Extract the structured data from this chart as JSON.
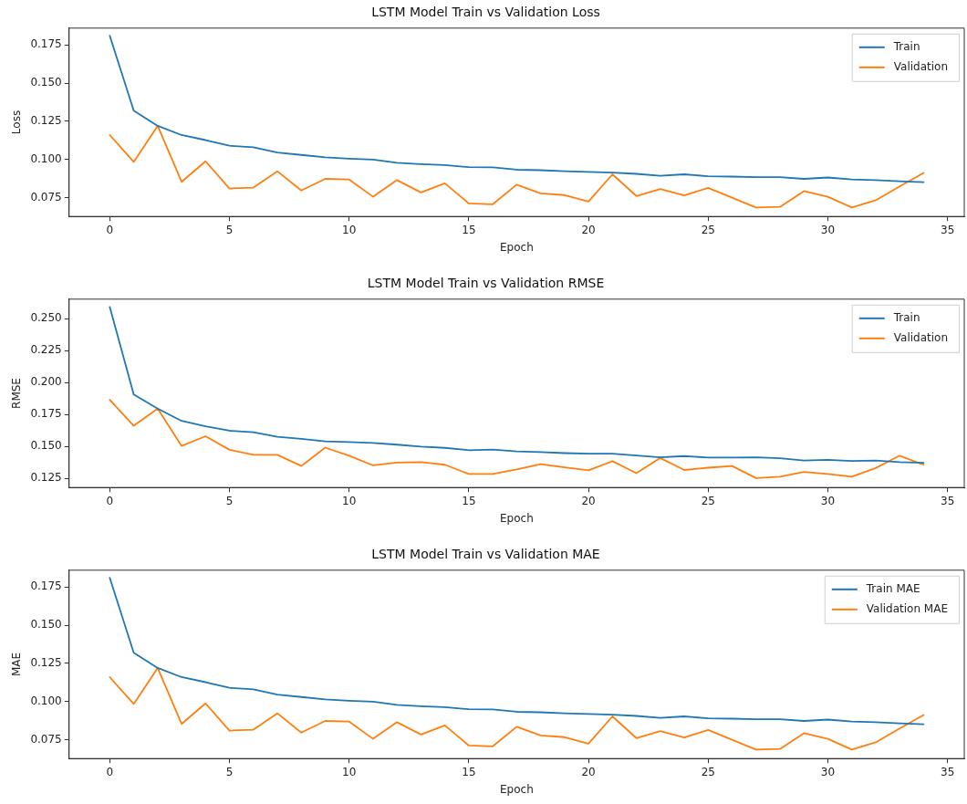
{
  "chart_data": [
    {
      "type": "line",
      "title": "LSTM Model Train vs Validation Loss",
      "xlabel": "Epoch",
      "ylabel": "Loss",
      "legend": "top right",
      "grid": false,
      "x": [
        0,
        1,
        2,
        3,
        4,
        5,
        6,
        7,
        8,
        9,
        10,
        11,
        12,
        13,
        14,
        15,
        16,
        17,
        18,
        19,
        20,
        21,
        22,
        23,
        24,
        25,
        26,
        27,
        28,
        29,
        30,
        31,
        32,
        33,
        34
      ],
      "series": [
        {
          "name": "Train",
          "color": "#1f77b4",
          "values": [
            0.181,
            0.132,
            0.122,
            0.116,
            0.1127,
            0.109,
            0.108,
            0.1046,
            0.103,
            0.1014,
            0.1005,
            0.0999,
            0.0978,
            0.097,
            0.0963,
            0.095,
            0.0948,
            0.0933,
            0.093,
            0.0923,
            0.0919,
            0.0914,
            0.0906,
            0.0893,
            0.0903,
            0.089,
            0.0888,
            0.0884,
            0.0884,
            0.0873,
            0.0882,
            0.0869,
            0.0865,
            0.0858,
            0.0852
          ]
        },
        {
          "name": "Validation",
          "color": "#ff7f0e",
          "values": [
            0.116,
            0.0984,
            0.122,
            0.0854,
            0.0988,
            0.081,
            0.0816,
            0.0923,
            0.0797,
            0.0873,
            0.0869,
            0.0756,
            0.0865,
            0.0784,
            0.0844,
            0.0712,
            0.0707,
            0.0835,
            0.0778,
            0.0767,
            0.0724,
            0.0903,
            0.0761,
            0.0807,
            0.0765,
            0.0814,
            0.075,
            0.0686,
            0.069,
            0.0793,
            0.0756,
            0.0686,
            0.0733,
            0.0824,
            0.0912
          ]
        }
      ],
      "xlim": [
        -1.7,
        35.7
      ],
      "xticks": [
        0,
        5,
        10,
        15,
        20,
        25,
        30,
        35
      ],
      "ylim": [
        0.0627,
        0.186
      ],
      "yticks": [
        {
          "value": 0.075,
          "label": "0.075"
        },
        {
          "value": 0.1,
          "label": "0.100"
        },
        {
          "value": 0.125,
          "label": "0.125"
        },
        {
          "value": 0.15,
          "label": "0.150"
        },
        {
          "value": 0.175,
          "label": "0.175"
        }
      ]
    },
    {
      "type": "line",
      "title": "LSTM Model Train vs Validation RMSE",
      "xlabel": "Epoch",
      "ylabel": "RMSE",
      "legend": "top right",
      "grid": false,
      "x": [
        0,
        1,
        2,
        3,
        4,
        5,
        6,
        7,
        8,
        9,
        10,
        11,
        12,
        13,
        14,
        15,
        16,
        17,
        18,
        19,
        20,
        21,
        22,
        23,
        24,
        25,
        26,
        27,
        28,
        29,
        30,
        31,
        32,
        33,
        34
      ],
      "series": [
        {
          "name": "Train",
          "color": "#1f77b4",
          "values": [
            0.259,
            0.1906,
            0.1796,
            0.17,
            0.1657,
            0.1623,
            0.1611,
            0.1575,
            0.156,
            0.154,
            0.1535,
            0.1527,
            0.1514,
            0.1499,
            0.1489,
            0.1471,
            0.1476,
            0.1461,
            0.1456,
            0.1448,
            0.1443,
            0.1443,
            0.143,
            0.1415,
            0.1425,
            0.1413,
            0.1413,
            0.1415,
            0.1408,
            0.139,
            0.1395,
            0.1387,
            0.139,
            0.1377,
            0.1372
          ]
        },
        {
          "name": "Validation",
          "color": "#ff7f0e",
          "values": [
            0.1865,
            0.1662,
            0.1796,
            0.1504,
            0.158,
            0.1474,
            0.1435,
            0.1435,
            0.1347,
            0.1491,
            0.1428,
            0.1352,
            0.1374,
            0.1377,
            0.1357,
            0.1285,
            0.1285,
            0.1321,
            0.1362,
            0.1336,
            0.1313,
            0.1385,
            0.1291,
            0.141,
            0.1316,
            0.1334,
            0.1347,
            0.1253,
            0.1263,
            0.1301,
            0.1285,
            0.1263,
            0.1331,
            0.1428,
            0.1357
          ]
        }
      ],
      "xlim": [
        -1.7,
        35.7
      ],
      "xticks": [
        0,
        5,
        10,
        15,
        20,
        25,
        30,
        35
      ],
      "ylim": [
        0.1179,
        0.2652
      ],
      "yticks": [
        {
          "value": 0.125,
          "label": "0.125"
        },
        {
          "value": 0.15,
          "label": "0.150"
        },
        {
          "value": 0.175,
          "label": "0.175"
        },
        {
          "value": 0.2,
          "label": "0.200"
        },
        {
          "value": 0.225,
          "label": "0.225"
        },
        {
          "value": 0.25,
          "label": "0.250"
        }
      ]
    },
    {
      "type": "line",
      "title": "LSTM Model Train vs Validation MAE",
      "xlabel": "Epoch",
      "ylabel": "MAE",
      "legend": "top right",
      "grid": false,
      "x": [
        0,
        1,
        2,
        3,
        4,
        5,
        6,
        7,
        8,
        9,
        10,
        11,
        12,
        13,
        14,
        15,
        16,
        17,
        18,
        19,
        20,
        21,
        22,
        23,
        24,
        25,
        26,
        27,
        28,
        29,
        30,
        31,
        32,
        33,
        34
      ],
      "series": [
        {
          "name": "Train MAE",
          "color": "#1f77b4",
          "values": [
            0.181,
            0.132,
            0.122,
            0.116,
            0.1127,
            0.109,
            0.108,
            0.1046,
            0.103,
            0.1014,
            0.1005,
            0.0999,
            0.0978,
            0.097,
            0.0963,
            0.095,
            0.0948,
            0.0933,
            0.093,
            0.0923,
            0.0919,
            0.0914,
            0.0906,
            0.0893,
            0.0903,
            0.089,
            0.0888,
            0.0884,
            0.0884,
            0.0873,
            0.0882,
            0.0869,
            0.0865,
            0.0858,
            0.0852
          ]
        },
        {
          "name": "Validation MAE",
          "color": "#ff7f0e",
          "values": [
            0.116,
            0.0984,
            0.122,
            0.0854,
            0.0988,
            0.081,
            0.0816,
            0.0923,
            0.0797,
            0.0873,
            0.0869,
            0.0756,
            0.0865,
            0.0784,
            0.0844,
            0.0712,
            0.0707,
            0.0835,
            0.0778,
            0.0767,
            0.0724,
            0.0903,
            0.0761,
            0.0807,
            0.0765,
            0.0814,
            0.075,
            0.0686,
            0.069,
            0.0793,
            0.0756,
            0.0686,
            0.0733,
            0.0824,
            0.0912
          ]
        }
      ],
      "xlim": [
        -1.7,
        35.7
      ],
      "xticks": [
        0,
        5,
        10,
        15,
        20,
        25,
        30,
        35
      ],
      "ylim": [
        0.0627,
        0.186
      ],
      "yticks": [
        {
          "value": 0.075,
          "label": "0.075"
        },
        {
          "value": 0.1,
          "label": "0.100"
        },
        {
          "value": 0.125,
          "label": "0.125"
        },
        {
          "value": 0.15,
          "label": "0.150"
        },
        {
          "value": 0.175,
          "label": "0.175"
        }
      ]
    }
  ]
}
